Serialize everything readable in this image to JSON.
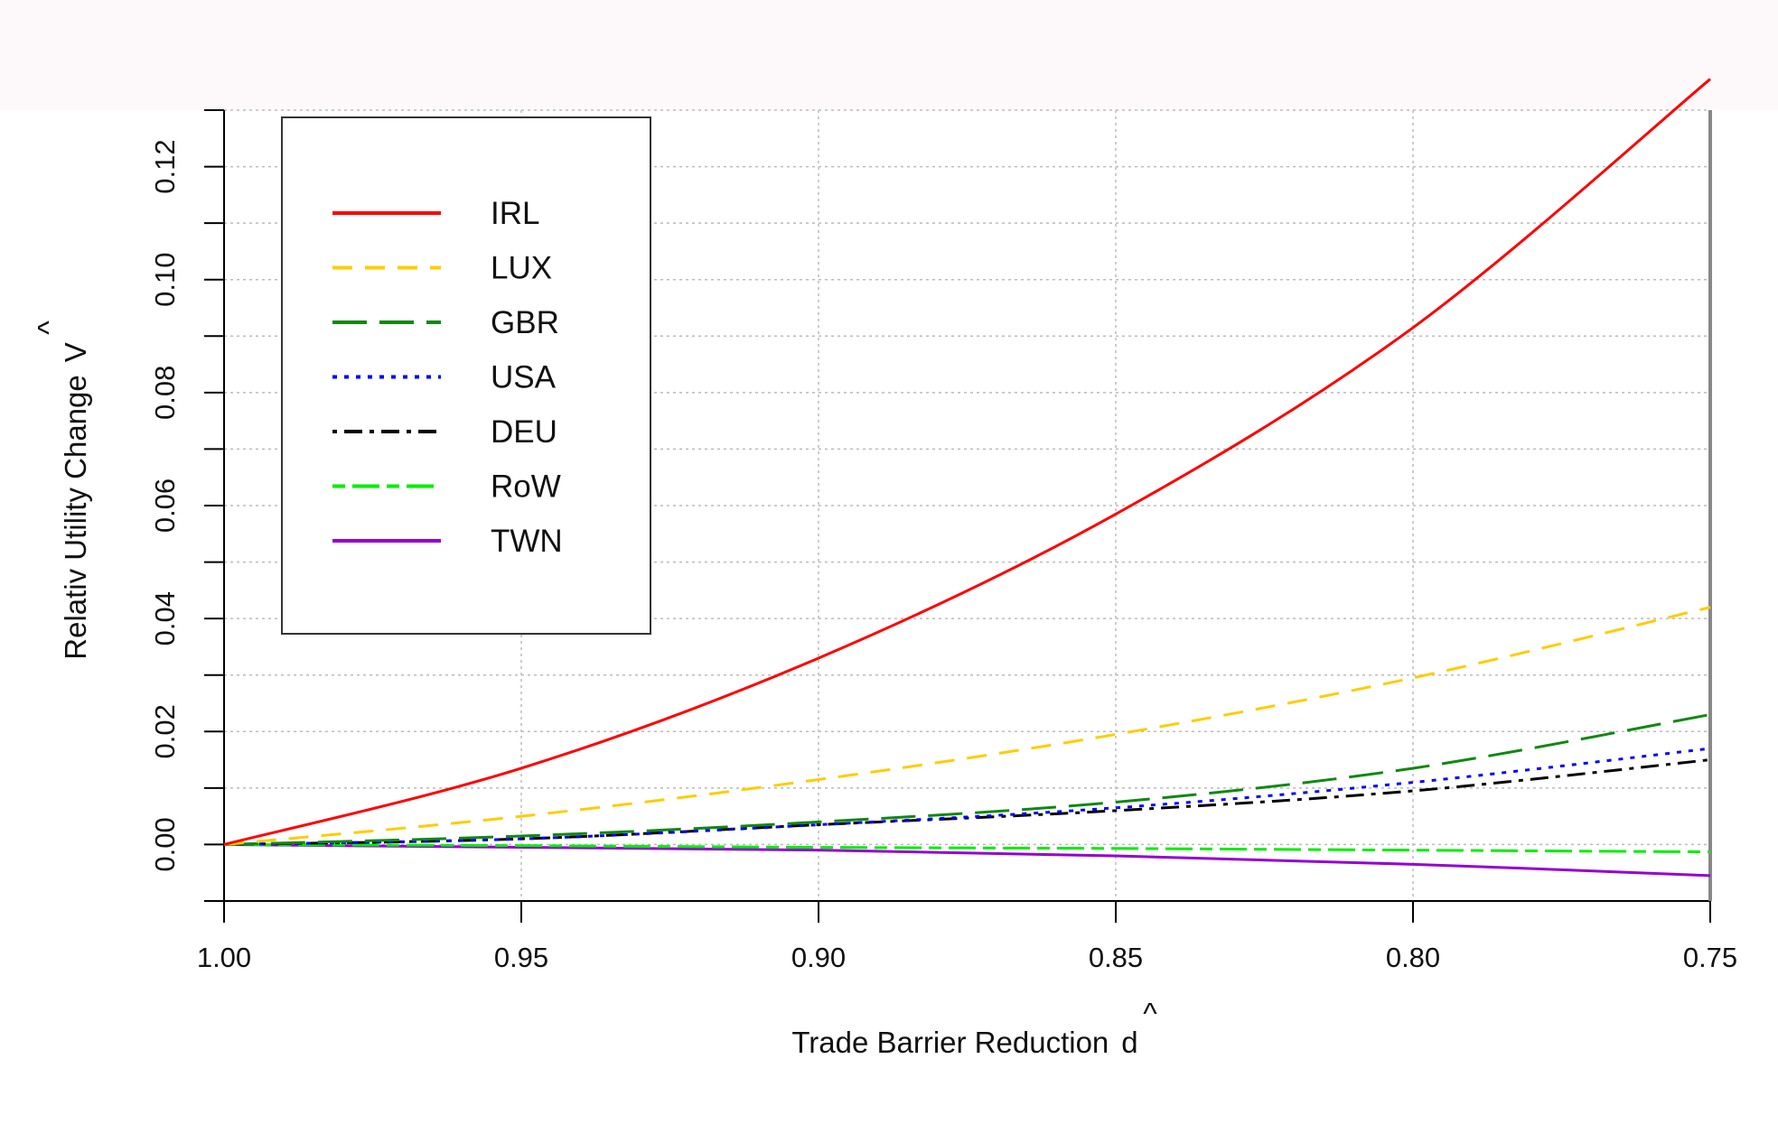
{
  "chart_data": {
    "type": "line",
    "xlabel": "Trade Barrier Reduction",
    "xlabel_symbol": "d",
    "ylabel": "Relativ Utility Change",
    "ylabel_symbol": "V",
    "hat_glyph": "^",
    "xlim": [
      1.0,
      0.75
    ],
    "x_reversed": true,
    "ylim": [
      -0.01,
      0.13
    ],
    "x_ticks": [
      "1.00",
      "0.95",
      "0.90",
      "0.85",
      "0.80",
      "0.75"
    ],
    "y_ticks": [
      "0.00",
      "0.02",
      "0.04",
      "0.06",
      "0.08",
      "0.10",
      "0.12"
    ],
    "grid": true,
    "legend_position": "top-left",
    "x": [
      1.0,
      0.95,
      0.9,
      0.85,
      0.8,
      0.75
    ],
    "series": [
      {
        "name": "IRL",
        "color": "#ff0000",
        "dash": "solid",
        "values": [
          0.0,
          0.0135,
          0.033,
          0.0585,
          0.0915,
          0.1355
        ]
      },
      {
        "name": "LUX",
        "color": "#ffcc00",
        "dash": "dashed",
        "values": [
          0.0,
          0.005,
          0.0115,
          0.0195,
          0.0295,
          0.042
        ]
      },
      {
        "name": "GBR",
        "color": "#118811",
        "dash": "longdash",
        "values": [
          0.0,
          0.0015,
          0.004,
          0.0075,
          0.0135,
          0.023
        ]
      },
      {
        "name": "USA",
        "color": "#0000ff",
        "dash": "dotted",
        "values": [
          0.0,
          0.001,
          0.0035,
          0.0065,
          0.011,
          0.017
        ]
      },
      {
        "name": "DEU",
        "color": "#000000",
        "dash": "dotdash",
        "values": [
          0.0,
          0.001,
          0.0035,
          0.006,
          0.0095,
          0.015
        ]
      },
      {
        "name": "RoW",
        "color": "#00ee00",
        "dash": "twodash",
        "values": [
          0.0,
          -0.0002,
          -0.0005,
          -0.0007,
          -0.001,
          -0.0013
        ]
      },
      {
        "name": "TWN",
        "color": "#9400d3",
        "dash": "solid",
        "values": [
          0.0,
          -0.0005,
          -0.001,
          -0.002,
          -0.0035,
          -0.0055
        ]
      }
    ]
  }
}
